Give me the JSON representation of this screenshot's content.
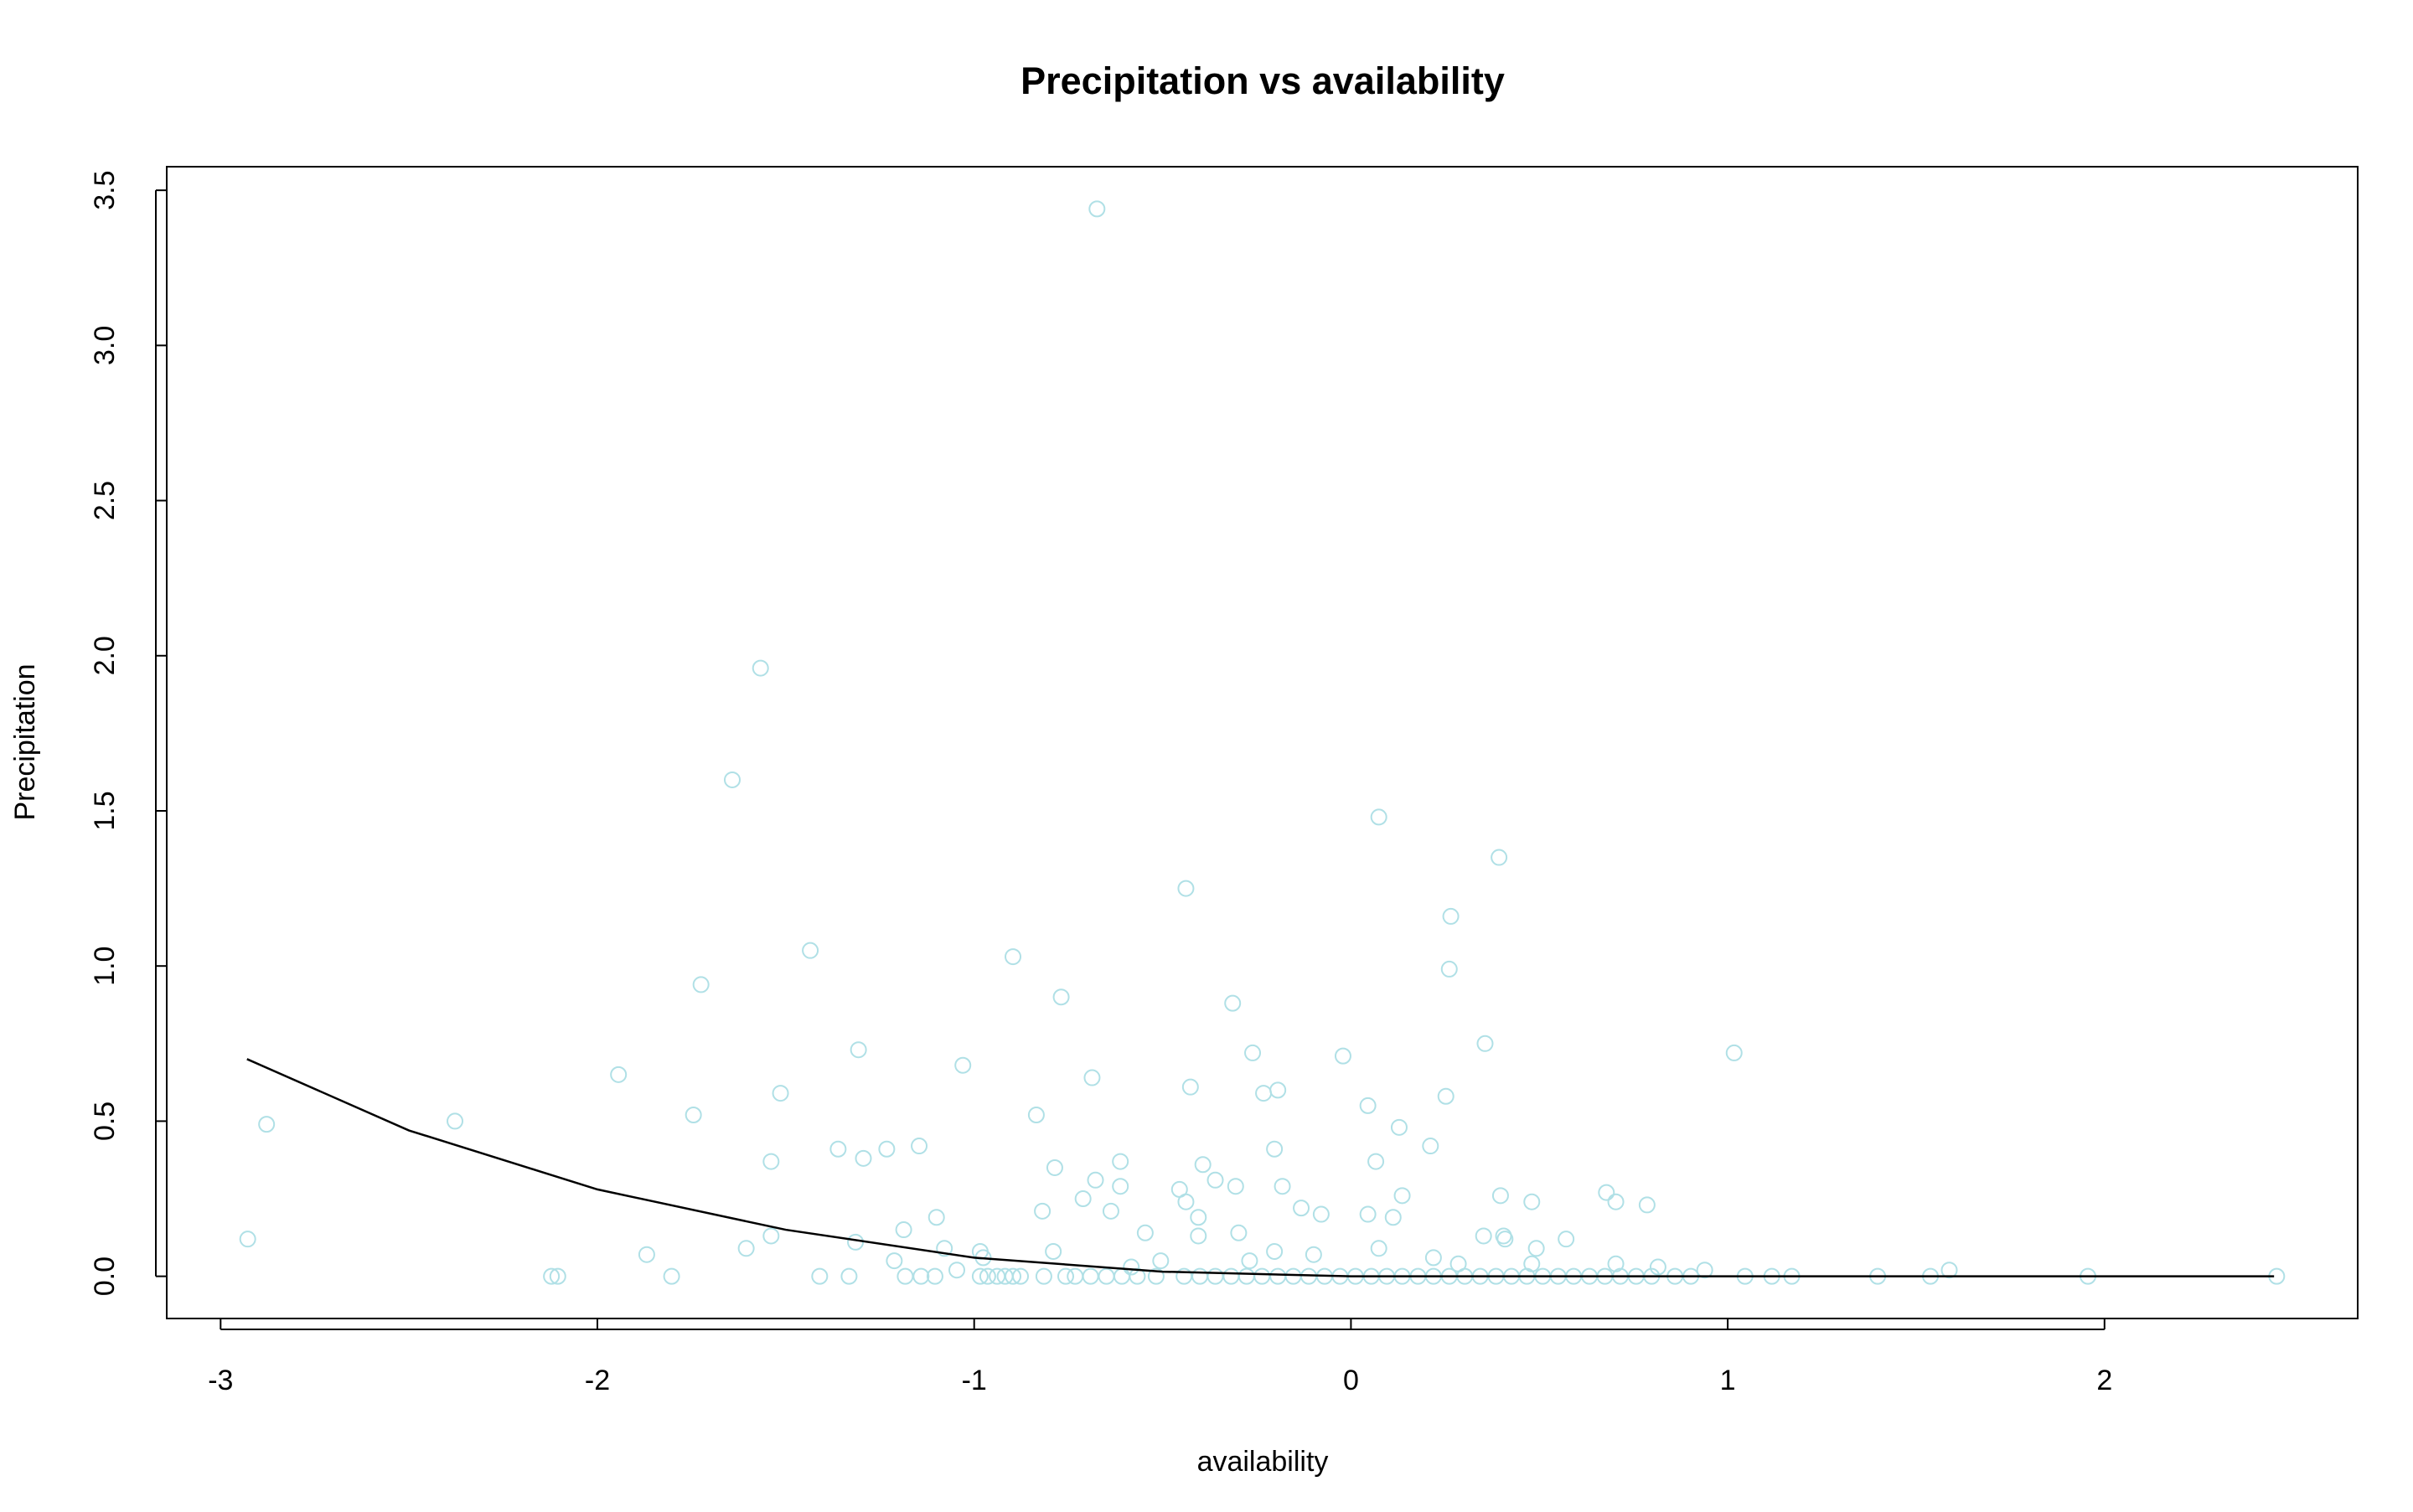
{
  "chart_data": {
    "type": "scatter",
    "title": "Precipitation vs availability",
    "x_label": "availability",
    "y_label": "Precipitation",
    "color": "#b0e0e6",
    "xlim": [
      -3.143,
      2.672
    ],
    "ylim": [
      -0.136,
      3.576
    ],
    "xticks": [
      -3,
      -2,
      -1,
      0,
      1,
      2
    ],
    "yticks": [
      {
        "value": 0,
        "label": "0.0"
      },
      0.5,
      {
        "value": 1,
        "label": "1.0"
      },
      1.5,
      {
        "value": 2,
        "label": "2.0"
      },
      2.5,
      {
        "value": 3,
        "label": "3.0"
      },
      3.5
    ],
    "grid": false,
    "x": [
      -0.674,
      -1.567,
      -1.642,
      0.074,
      0.393,
      -0.438,
      0.265,
      -1.435,
      -0.897,
      0.261,
      -1.725,
      -0.769,
      -0.314,
      0.356,
      -1.307,
      -0.261,
      1.017,
      -0.021,
      -1.03,
      -1.944,
      -0.687,
      -0.426,
      -0.194,
      -0.232,
      -1.514,
      0.252,
      0.045,
      -1.745,
      -0.835,
      -2.878,
      -2.378,
      0.128,
      -1.361,
      -1.232,
      -0.203,
      -1.146,
      0.211,
      -1.294,
      -1.539,
      -0.612,
      0.066,
      -0.393,
      -0.786,
      -0.678,
      -0.36,
      -0.612,
      -0.306,
      -0.182,
      -0.455,
      0.678,
      0.397,
      0.136,
      -0.711,
      0.48,
      0.703,
      -0.438,
      0.786,
      -0.132,
      -0.637,
      -0.819,
      -0.079,
      0.045,
      -0.405,
      -1.1,
      0.112,
      -1.187,
      -0.546,
      -0.298,
      0.352,
      -1.539,
      -0.405,
      0.405,
      0.409,
      0.571,
      -2.928,
      -1.315,
      -1.079,
      0.074,
      0.492,
      -1.605,
      -0.984,
      -0.79,
      -0.203,
      -1.869,
      -0.099,
      -1.212,
      -0.976,
      -0.505,
      -0.269,
      0.219,
      0.48,
      0.703,
      0.285,
      0.815,
      -0.583,
      0.939,
      1.588,
      -1.046,
      -2.122,
      -2.105,
      -1.803,
      -1.41,
      -1.332,
      -1.183,
      -1.141,
      -1.104,
      -0.984,
      -0.964,
      -0.939,
      -0.918,
      -0.897,
      -0.877,
      -0.815,
      -0.757,
      -0.732,
      -0.691,
      -0.649,
      -0.608,
      -0.567,
      -0.517,
      -0.443,
      -0.401,
      -0.36,
      -0.318,
      -0.277,
      -0.236,
      -0.194,
      -0.153,
      -0.112,
      -0.07,
      -0.029,
      0.012,
      0.054,
      0.095,
      0.136,
      0.178,
      0.219,
      0.261,
      0.302,
      0.343,
      0.385,
      0.426,
      0.467,
      0.509,
      0.55,
      0.591,
      0.633,
      0.674,
      0.715,
      0.757,
      0.798,
      0.86,
      0.902,
      1.046,
      1.117,
      1.17,
      1.398,
      1.538,
      1.956,
      2.457
    ],
    "values": [
      3.44,
      1.96,
      1.6,
      1.48,
      1.35,
      1.25,
      1.16,
      1.05,
      1.03,
      0.99,
      0.94,
      0.9,
      0.88,
      0.75,
      0.73,
      0.72,
      0.72,
      0.71,
      0.68,
      0.65,
      0.64,
      0.61,
      0.6,
      0.59,
      0.59,
      0.58,
      0.55,
      0.52,
      0.52,
      0.49,
      0.5,
      0.48,
      0.41,
      0.41,
      0.41,
      0.42,
      0.42,
      0.38,
      0.37,
      0.37,
      0.37,
      0.36,
      0.35,
      0.31,
      0.31,
      0.29,
      0.29,
      0.29,
      0.28,
      0.27,
      0.26,
      0.26,
      0.25,
      0.24,
      0.24,
      0.24,
      0.23,
      0.22,
      0.21,
      0.21,
      0.2,
      0.2,
      0.19,
      0.19,
      0.19,
      0.15,
      0.14,
      0.14,
      0.13,
      0.13,
      0.13,
      0.13,
      0.12,
      0.12,
      0.12,
      0.11,
      0.09,
      0.09,
      0.09,
      0.09,
      0.08,
      0.08,
      0.08,
      0.07,
      0.07,
      0.05,
      0.06,
      0.05,
      0.05,
      0.06,
      0.04,
      0.04,
      0.04,
      0.03,
      0.03,
      0.02,
      0.02,
      0.02,
      0,
      0,
      0,
      0,
      0,
      0,
      0,
      0,
      0,
      0,
      0,
      0,
      0,
      0,
      0,
      0,
      0,
      0,
      0,
      0,
      0,
      0,
      0,
      0,
      0,
      0,
      0,
      0,
      0,
      0,
      0,
      0,
      0,
      0,
      0,
      0,
      0,
      0,
      0,
      0,
      0,
      0,
      0,
      0,
      0,
      0,
      0,
      0,
      0,
      0,
      0,
      0,
      0,
      0,
      0,
      0,
      0,
      0,
      0,
      0,
      0,
      0
    ],
    "curve": {
      "color": "#000000",
      "x": [
        -2.93,
        -2.5,
        -2,
        -1.5,
        -1,
        -0.5,
        0,
        0.5,
        1,
        1.5,
        2,
        2.45
      ],
      "values": [
        0.7,
        0.47,
        0.28,
        0.15,
        0.06,
        0.015,
        0,
        0,
        0,
        0,
        0,
        0
      ]
    }
  }
}
